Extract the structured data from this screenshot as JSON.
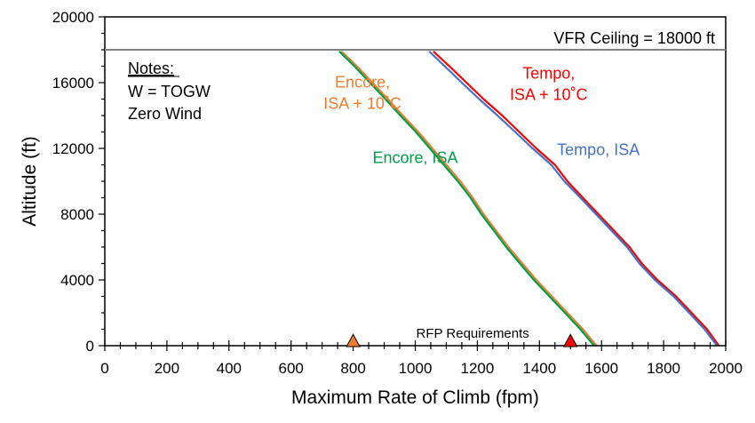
{
  "chart_data": {
    "type": "line",
    "xlabel": "Maximum Rate of Climb (fpm)",
    "ylabel": "Altitude (ft)",
    "xlim": [
      0,
      2000
    ],
    "ylim": [
      0,
      20000
    ],
    "xticks": [
      "0",
      "200",
      "400",
      "600",
      "800",
      "1000",
      "1200",
      "1400",
      "1600",
      "1800",
      "2000"
    ],
    "yticks": [
      "0",
      "4000",
      "8000",
      "12000",
      "16000",
      "20000"
    ],
    "grid": false,
    "series": [
      {
        "name": "Tempo, ISA + 10˚C",
        "color": "#ff0000",
        "points": [
          [
            1978,
            0
          ],
          [
            1940,
            1000
          ],
          [
            1890,
            2000
          ],
          [
            1840,
            3000
          ],
          [
            1780,
            4000
          ],
          [
            1730,
            5000
          ],
          [
            1690,
            6000
          ],
          [
            1640,
            7000
          ],
          [
            1590,
            8000
          ],
          [
            1540,
            9000
          ],
          [
            1490,
            10000
          ],
          [
            1450,
            11000
          ],
          [
            1390,
            12000
          ],
          [
            1335,
            13000
          ],
          [
            1280,
            14000
          ],
          [
            1220,
            15000
          ],
          [
            1165,
            16000
          ],
          [
            1110,
            17000
          ],
          [
            1058,
            17900
          ]
        ]
      },
      {
        "name": "Tempo, ISA",
        "color": "#4472c4",
        "points": [
          [
            1972,
            0
          ],
          [
            1932,
            1000
          ],
          [
            1882,
            2000
          ],
          [
            1832,
            3000
          ],
          [
            1772,
            4000
          ],
          [
            1722,
            5000
          ],
          [
            1682,
            6000
          ],
          [
            1632,
            7000
          ],
          [
            1582,
            8000
          ],
          [
            1532,
            9000
          ],
          [
            1480,
            10000
          ],
          [
            1438,
            11000
          ],
          [
            1378,
            12000
          ],
          [
            1322,
            13000
          ],
          [
            1265,
            14000
          ],
          [
            1206,
            15000
          ],
          [
            1150,
            16000
          ],
          [
            1095,
            17000
          ],
          [
            1045,
            17900
          ]
        ]
      },
      {
        "name": "Encore, ISA + 10˚C",
        "color": "#ed7d31",
        "points": [
          [
            1584,
            0
          ],
          [
            1540,
            1000
          ],
          [
            1490,
            2000
          ],
          [
            1440,
            3000
          ],
          [
            1390,
            4000
          ],
          [
            1345,
            5000
          ],
          [
            1300,
            6000
          ],
          [
            1260,
            7000
          ],
          [
            1220,
            8000
          ],
          [
            1185,
            9000
          ],
          [
            1145,
            10000
          ],
          [
            1100,
            11000
          ],
          [
            1055,
            12000
          ],
          [
            1010,
            13000
          ],
          [
            960,
            14000
          ],
          [
            912,
            15000
          ],
          [
            862,
            16000
          ],
          [
            812,
            17000
          ],
          [
            762,
            17900
          ]
        ]
      },
      {
        "name": "Encore, ISA",
        "color": "#00a04a",
        "points": [
          [
            1576,
            0
          ],
          [
            1532,
            1000
          ],
          [
            1482,
            2000
          ],
          [
            1432,
            3000
          ],
          [
            1382,
            4000
          ],
          [
            1337,
            5000
          ],
          [
            1293,
            6000
          ],
          [
            1253,
            7000
          ],
          [
            1213,
            8000
          ],
          [
            1178,
            9000
          ],
          [
            1137,
            10000
          ],
          [
            1092,
            11000
          ],
          [
            1047,
            12000
          ],
          [
            1002,
            13000
          ],
          [
            952,
            14000
          ],
          [
            904,
            15000
          ],
          [
            854,
            16000
          ],
          [
            804,
            17000
          ],
          [
            755,
            17900
          ]
        ]
      }
    ],
    "ceiling": {
      "value": 18000,
      "label": "VFR Ceiling = 18000 ft",
      "color": "#808080"
    },
    "requirements": {
      "label": "RFP Requirements",
      "markers": [
        {
          "x": 800,
          "y": 0,
          "color": "#ed7d31"
        },
        {
          "x": 1500,
          "y": 0,
          "color": "#ff0000"
        }
      ]
    },
    "series_labels": [
      {
        "lines": [
          "Encore,",
          "ISA + 10˚C"
        ],
        "color": "#ed7d31",
        "x": 830,
        "y": 15700
      },
      {
        "lines": [
          "Encore, ISA"
        ],
        "color": "#00a04a",
        "x": 1000,
        "y": 11100
      },
      {
        "lines": [
          "Tempo,",
          "ISA + 10˚C"
        ],
        "color": "#ff0000",
        "x": 1430,
        "y": 16250
      },
      {
        "lines": [
          "Tempo, ISA"
        ],
        "color": "#4472c4",
        "x": 1590,
        "y": 11600
      }
    ],
    "notes": {
      "title": "Notes:",
      "lines": [
        "W = TOGW",
        "Zero Wind"
      ]
    }
  }
}
